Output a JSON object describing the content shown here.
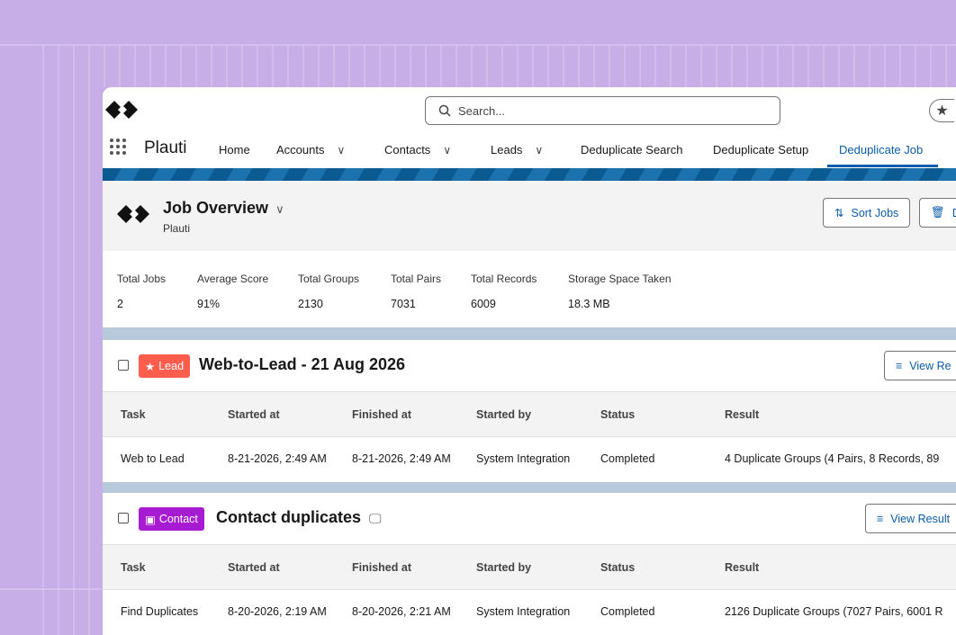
{
  "search": {
    "placeholder": "Search..."
  },
  "nav": {
    "app_name": "Plauti",
    "items": [
      {
        "label": "Home"
      },
      {
        "label": "Accounts"
      },
      {
        "label": "Contacts"
      },
      {
        "label": "Leads"
      },
      {
        "label": "Deduplicate Search"
      },
      {
        "label": "Deduplicate Setup"
      },
      {
        "label": "Deduplicate Job"
      }
    ],
    "active": "Deduplicate Job"
  },
  "overview": {
    "title": "Job Overview",
    "subtitle": "Plauti",
    "sort_label": "Sort Jobs",
    "delete_label": "D"
  },
  "stats": [
    {
      "label": "Total Jobs",
      "value": "2"
    },
    {
      "label": "Average Score",
      "value": "91%"
    },
    {
      "label": "Total Groups",
      "value": "2130"
    },
    {
      "label": "Total Pairs",
      "value": "7031"
    },
    {
      "label": "Total Records",
      "value": "6009"
    },
    {
      "label": "Storage Space Taken",
      "value": "18.3 MB"
    }
  ],
  "jobs": [
    {
      "badge": "Lead",
      "badge_color": "#fe5c4c",
      "title": "Web-to-Lead - 21 Aug 2026",
      "view_label": "View Re",
      "columns": [
        "Task",
        "Started at",
        "Finished at",
        "Started by",
        "Status",
        "Result"
      ],
      "row": [
        "Web to Lead",
        "8-21-2026, 2:49 AM",
        "8-21-2026, 2:49 AM",
        "System Integration",
        "Completed",
        "4 Duplicate Groups (4 Pairs, 8 Records, 89"
      ]
    },
    {
      "badge": "Contact",
      "badge_color": "#a71bd2",
      "title": "Contact duplicates",
      "view_label": "View Result",
      "columns": [
        "Task",
        "Started at",
        "Finished at",
        "Started by",
        "Status",
        "Result"
      ],
      "row": [
        "Find Duplicates",
        "8-20-2026, 2:19 AM",
        "8-20-2026, 2:21 AM",
        "System Integration",
        "Completed",
        "2126 Duplicate Groups (7027 Pairs, 6001 R"
      ]
    }
  ]
}
